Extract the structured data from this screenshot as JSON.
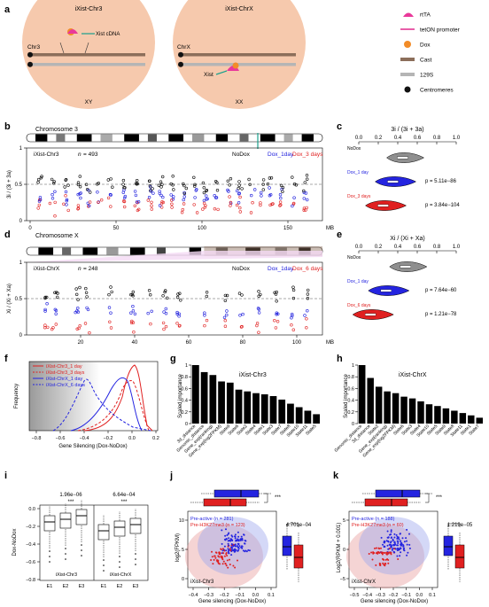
{
  "panels": {
    "a": {
      "letter": "a",
      "cell1": {
        "title": "iXist-Chr3",
        "xist_cdna": "Xist cDNA",
        "chr": "Chr3",
        "karyotype": "XY"
      },
      "cell2": {
        "title": "iXist-ChrX",
        "chr": "ChrX",
        "xist": "Xist",
        "karyotype": "XX"
      },
      "legend": [
        {
          "label": "rtTA",
          "color": "#e9389a"
        },
        {
          "label": "tetON promoter",
          "color": "#e0288c"
        },
        {
          "label": "Dox",
          "color": "#f28c28"
        },
        {
          "label": "Cast",
          "color": "#8c6e5a"
        },
        {
          "label": "129S",
          "color": "#b5b5b5"
        },
        {
          "label": "Centromeres",
          "color": "#111111"
        }
      ]
    },
    "b": {
      "letter": "b",
      "chromosome": "Chromosome 3",
      "ylabel": "3i / (3i + 3a)",
      "name": "iXist-Chr3",
      "n_label": "n",
      "n_value": "= 493",
      "legend": [
        {
          "label": "NoDox",
          "color": "#000000"
        },
        {
          "label": "Dox_1day",
          "color": "#1a1adc"
        },
        {
          "label": "Dox_3 days",
          "color": "#e02020"
        }
      ],
      "yticks": [
        "0",
        "0.5",
        "1"
      ],
      "xticks": [
        "0",
        "50",
        "100",
        "150"
      ],
      "xunit": "MB"
    },
    "c": {
      "letter": "c",
      "title": "3i / (3i + 3a)",
      "ticks": [
        "0.0",
        "0.2",
        "0.4",
        "0.6",
        "0.8",
        "1.0"
      ],
      "rows": [
        {
          "label": "NoDox",
          "color": "#8f8f8f",
          "p": ""
        },
        {
          "label": "Dox_1 day",
          "color": "#2424e0",
          "p": "p = 5.11e−86"
        },
        {
          "label": "Dox_3 days",
          "color": "#e02020",
          "p": "p = 3.84e−104"
        }
      ]
    },
    "d": {
      "letter": "d",
      "chromosome": "Chromosome X",
      "ylabel": "Xi / (Xi + Xa)",
      "name": "iXist-ChrX",
      "n_label": "n",
      "n_value": "= 248",
      "legend": [
        {
          "label": "NoDox",
          "color": "#000000"
        },
        {
          "label": "Dox_1day",
          "color": "#1a1adc"
        },
        {
          "label": "Dox_6 days",
          "color": "#e02020"
        }
      ],
      "yticks": [
        "0",
        "0.5",
        "1"
      ],
      "xticks": [
        "20",
        "40",
        "60",
        "80",
        "100"
      ],
      "xunit": "MB"
    },
    "e": {
      "letter": "e",
      "title": "Xi / (Xi + Xa)",
      "ticks": [
        "0.0",
        "0.2",
        "0.4",
        "0.6",
        "0.8",
        "1.0"
      ],
      "rows": [
        {
          "label": "NoDox",
          "color": "#8f8f8f",
          "p": ""
        },
        {
          "label": "Dox_1 day",
          "color": "#2424e0",
          "p": "p = 7.64e−60"
        },
        {
          "label": "Dox_6 days",
          "color": "#e02020",
          "p": "p = 1.21e−78"
        }
      ]
    },
    "f": {
      "letter": "f",
      "ylabel": "Frequency",
      "xlabel": "Gene Silencing (Dox-NoDox)",
      "xticks": [
        "−0.8",
        "−0.6",
        "−0.4",
        "−0.2",
        "0.0",
        "0.2"
      ],
      "legend": [
        {
          "label": "iXist-Chr3_1 day",
          "color": "#e02020",
          "dash": false
        },
        {
          "label": "iXist-Chr3_3 days",
          "color": "#e02020",
          "dash": true
        },
        {
          "label": "iXist-ChrX_1 day",
          "color": "#2424e0",
          "dash": false
        },
        {
          "label": "iXist-ChrX_6 days",
          "color": "#2424e0",
          "dash": true
        }
      ]
    },
    "g": {
      "letter": "g",
      "title": "iXist-Chr3",
      "ylabel": "Scaled importance",
      "yticks": [
        "0",
        "0.2",
        "0.4",
        "0.6",
        "0.8",
        "1"
      ]
    },
    "h": {
      "letter": "h",
      "title": "iXist-ChrX",
      "ylabel": "Scaled importance",
      "yticks": [
        "0",
        "0.2",
        "0.4",
        "0.6",
        "0.8",
        "1"
      ]
    },
    "i": {
      "letter": "i",
      "ylabel": "Dox-NoDox",
      "yticks": [
        "0.0",
        "−0.2",
        "−0.4",
        "−0.6",
        "−0.8"
      ],
      "p1": "1.96e−06",
      "p2": "6.64e−04",
      "stars": "***",
      "groups": [
        {
          "name": "iXist-Chr3",
          "labels": [
            "E1",
            "E2",
            "E3"
          ]
        },
        {
          "name": "iXist-ChrX",
          "labels": [
            "E1",
            "E2",
            "E3"
          ]
        }
      ]
    },
    "j": {
      "letter": "j",
      "ylabel": "log2(FPKM)",
      "xlabel": "Gene silencing (Dox-NoDox)",
      "name": "iXist-Chr3",
      "p": "4.701e−04",
      "stars": "***",
      "pre_active": "Pre-active (n = 281)",
      "pre_k27": "Pre-H3K27me3 (n = 123)",
      "xticks": [
        "−0.4",
        "−0.3",
        "−0.2",
        "−0.1",
        "0.0",
        "0.1"
      ],
      "yticks": [
        "0",
        "5",
        "10"
      ]
    },
    "k": {
      "letter": "k",
      "ylabel": "Log2(RPKM + 0.001)",
      "xlabel": "Gene silencing (Dox-NoDox)",
      "name": "iXist-ChrX",
      "p": "1.219e−05",
      "stars": "***",
      "pre_active": "Pre-active (n = 188)",
      "pre_k27": "Pre-H3K27me3 (n = 60)",
      "xticks": [
        "−0.5",
        "−0.4",
        "−0.3",
        "−0.2",
        "−0.1",
        "0.0",
        "0.1"
      ],
      "yticks": [
        "−5",
        "0",
        "5"
      ]
    }
  },
  "chart_data": [
    {
      "id": "g",
      "type": "bar",
      "title": "iXist-Chr3",
      "ylabel": "Scaled importance",
      "ylim": [
        0,
        1
      ],
      "categories": [
        "3d_distance",
        "Genomic_distance",
        "Gene_exp(ranking)",
        "Gene_exp(log2FPKM)",
        "State9",
        "State6",
        "State2",
        "State4",
        "State1",
        "State3",
        "State7",
        "State8",
        "State10",
        "State11",
        "State5"
      ],
      "values": [
        1.0,
        0.88,
        0.83,
        0.72,
        0.7,
        0.58,
        0.55,
        0.52,
        0.5,
        0.47,
        0.41,
        0.34,
        0.28,
        0.22,
        0.16
      ]
    },
    {
      "id": "h",
      "type": "bar",
      "title": "iXist-ChrX",
      "ylabel": "Scaled importance",
      "ylim": [
        0,
        1
      ],
      "categories": [
        "Genomic_distance",
        "3d_distance",
        "State2",
        "Gene_exp(ranking)",
        "Gene_exp(log2FPKM)",
        "State6",
        "State3",
        "State4",
        "State10",
        "State5",
        "State9",
        "State8",
        "State11",
        "State1",
        "State7"
      ],
      "values": [
        1.0,
        0.78,
        0.63,
        0.55,
        0.52,
        0.46,
        0.43,
        0.38,
        0.33,
        0.3,
        0.26,
        0.22,
        0.18,
        0.14,
        0.1
      ]
    }
  ]
}
